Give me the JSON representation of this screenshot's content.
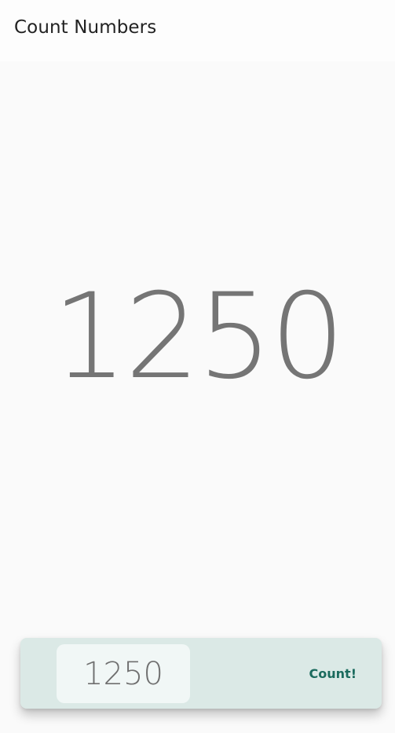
{
  "app_bar": {
    "title": "Count Numbers"
  },
  "main": {
    "count_value": "1250"
  },
  "bottom_bar": {
    "input_value": "1250",
    "button_label": "Count!"
  },
  "colors": {
    "accent": "#1b6b5e",
    "bottom_bar_bg": "#dbe9e6",
    "count_text": "#757575"
  }
}
